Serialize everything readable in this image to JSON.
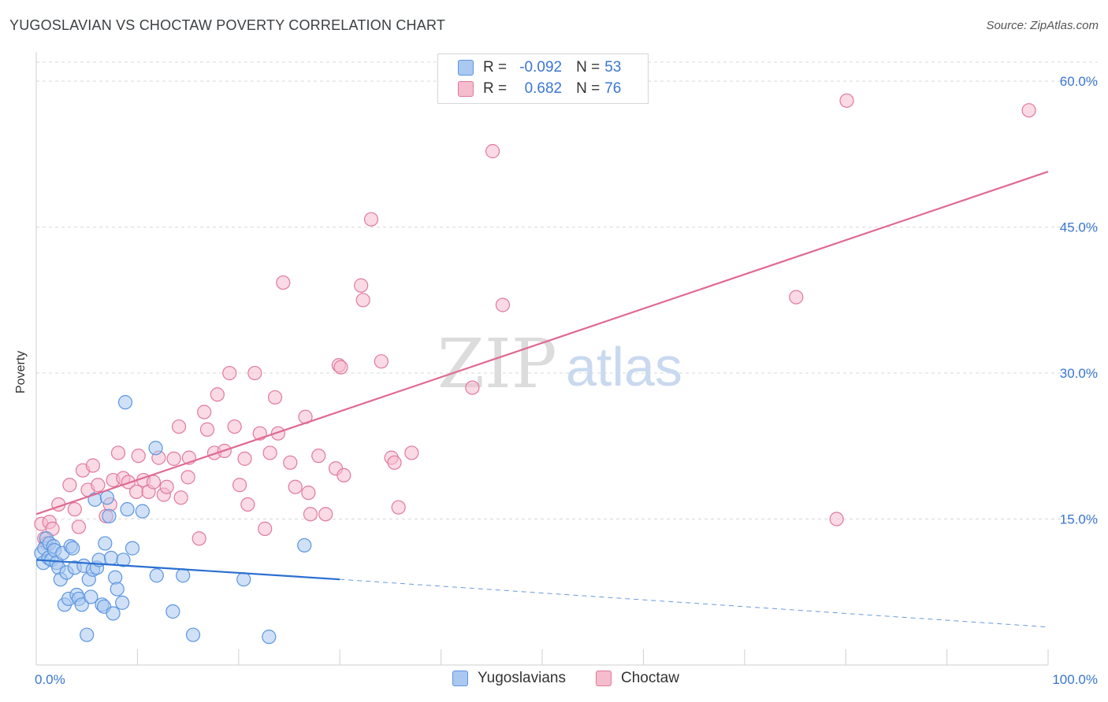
{
  "header": {
    "title": "YUGOSLAVIAN VS CHOCTAW POVERTY CORRELATION CHART",
    "source": "Source: ZipAtlas.com"
  },
  "watermark": {
    "zip": "ZIP",
    "atlas": "atlas"
  },
  "legend": {
    "rows": [
      {
        "r_label": "R = ",
        "r_value": "-0.092",
        "n_label": "N = ",
        "n_value": "53",
        "color": "#5b96e0"
      },
      {
        "r_label": "R = ",
        "r_value": "0.682",
        "n_label": "N = ",
        "n_value": "76",
        "color": "#e07a9c"
      }
    ]
  },
  "bottom_legend": {
    "items": [
      {
        "label": "Yugoslavians"
      },
      {
        "label": "Choctaw"
      }
    ]
  },
  "colors": {
    "blue_fill": "#aac8f0",
    "blue_stroke": "#5b96e0",
    "blue_line": "#2a6fd0",
    "pink_fill": "#f5bccd",
    "pink_stroke": "#e07a9c",
    "pink_line": "#e06a92",
    "axis_text": "#3a76d0",
    "grid": "#d9d9d9"
  },
  "chart_data": {
    "type": "scatter",
    "title": "YUGOSLAVIAN VS CHOCTAW POVERTY CORRELATION CHART",
    "xlabel": "",
    "ylabel": "Poverty",
    "xlim": [
      0,
      100
    ],
    "ylim": [
      0,
      63
    ],
    "x_tick_labels": [
      "0.0%",
      "100.0%"
    ],
    "y_ticks": [
      15,
      30,
      45,
      60
    ],
    "y_tick_labels": [
      "15.0%",
      "30.0%",
      "45.0%",
      "60.0%"
    ],
    "series": [
      {
        "name": "Yugoslavians",
        "r": -0.092,
        "n": 53,
        "trend": {
          "x0": 0,
          "y0": 10.8,
          "x1": 30,
          "y1": 8.8,
          "dash_to_x": 100,
          "dash_to_y": 3.9
        },
        "points": [
          [
            0.5,
            11.5
          ],
          [
            0.7,
            10.5
          ],
          [
            0.8,
            12.0
          ],
          [
            1.0,
            13.0
          ],
          [
            1.2,
            11.0
          ],
          [
            1.3,
            12.5
          ],
          [
            1.5,
            10.8
          ],
          [
            1.7,
            12.2
          ],
          [
            1.8,
            11.8
          ],
          [
            2.0,
            10.5
          ],
          [
            2.2,
            10.0
          ],
          [
            2.4,
            8.8
          ],
          [
            2.6,
            11.5
          ],
          [
            2.8,
            6.2
          ],
          [
            3.0,
            9.5
          ],
          [
            3.2,
            6.8
          ],
          [
            3.4,
            12.2
          ],
          [
            3.6,
            12.0
          ],
          [
            3.8,
            10.0
          ],
          [
            4.0,
            7.2
          ],
          [
            4.2,
            6.8
          ],
          [
            4.5,
            6.2
          ],
          [
            4.7,
            10.2
          ],
          [
            5.0,
            3.1
          ],
          [
            5.2,
            8.8
          ],
          [
            5.4,
            7.0
          ],
          [
            5.6,
            9.8
          ],
          [
            5.8,
            17.0
          ],
          [
            6.0,
            10.0
          ],
          [
            6.2,
            10.8
          ],
          [
            6.5,
            6.2
          ],
          [
            6.7,
            6.0
          ],
          [
            6.8,
            12.5
          ],
          [
            7.0,
            17.2
          ],
          [
            7.2,
            15.3
          ],
          [
            7.4,
            11.0
          ],
          [
            7.6,
            5.3
          ],
          [
            7.8,
            9.0
          ],
          [
            8.0,
            7.8
          ],
          [
            8.5,
            6.4
          ],
          [
            8.6,
            10.8
          ],
          [
            8.8,
            27.0
          ],
          [
            9.0,
            16.0
          ],
          [
            9.5,
            12.0
          ],
          [
            10.5,
            15.8
          ],
          [
            11.8,
            22.3
          ],
          [
            11.9,
            9.2
          ],
          [
            13.5,
            5.5
          ],
          [
            14.5,
            9.2
          ],
          [
            15.5,
            3.1
          ],
          [
            20.5,
            8.8
          ],
          [
            23.0,
            2.9
          ],
          [
            26.5,
            12.3
          ]
        ]
      },
      {
        "name": "Choctaw",
        "r": 0.682,
        "n": 76,
        "trend": {
          "x0": 0,
          "y0": 15.5,
          "x1": 100,
          "y1": 50.7
        },
        "points": [
          [
            0.5,
            14.5
          ],
          [
            0.8,
            13.0
          ],
          [
            1.0,
            12.5
          ],
          [
            1.3,
            14.7
          ],
          [
            1.6,
            14.0
          ],
          [
            2.2,
            16.5
          ],
          [
            3.3,
            18.5
          ],
          [
            3.8,
            16.0
          ],
          [
            4.2,
            14.2
          ],
          [
            4.6,
            20.0
          ],
          [
            5.1,
            18.0
          ],
          [
            5.6,
            20.5
          ],
          [
            6.1,
            18.5
          ],
          [
            6.9,
            15.3
          ],
          [
            7.3,
            16.5
          ],
          [
            7.6,
            19.0
          ],
          [
            8.1,
            21.8
          ],
          [
            8.6,
            19.2
          ],
          [
            9.1,
            18.8
          ],
          [
            9.9,
            17.8
          ],
          [
            10.1,
            21.5
          ],
          [
            10.6,
            19.0
          ],
          [
            11.1,
            17.8
          ],
          [
            11.6,
            18.8
          ],
          [
            12.1,
            21.3
          ],
          [
            12.6,
            17.5
          ],
          [
            12.9,
            18.3
          ],
          [
            13.6,
            21.2
          ],
          [
            14.1,
            24.5
          ],
          [
            14.3,
            17.2
          ],
          [
            15.0,
            19.3
          ],
          [
            15.1,
            21.3
          ],
          [
            16.1,
            13.0
          ],
          [
            16.6,
            26.0
          ],
          [
            16.9,
            24.2
          ],
          [
            17.6,
            21.8
          ],
          [
            17.9,
            27.8
          ],
          [
            18.6,
            22.0
          ],
          [
            19.1,
            30.0
          ],
          [
            19.6,
            24.5
          ],
          [
            20.1,
            18.5
          ],
          [
            20.6,
            21.2
          ],
          [
            20.9,
            16.5
          ],
          [
            21.6,
            30.0
          ],
          [
            22.1,
            23.8
          ],
          [
            22.6,
            14.0
          ],
          [
            23.1,
            21.8
          ],
          [
            23.6,
            27.5
          ],
          [
            23.9,
            23.8
          ],
          [
            24.4,
            39.3
          ],
          [
            25.1,
            20.8
          ],
          [
            25.6,
            18.3
          ],
          [
            26.6,
            25.5
          ],
          [
            26.9,
            17.7
          ],
          [
            27.1,
            15.5
          ],
          [
            27.9,
            21.5
          ],
          [
            28.6,
            15.5
          ],
          [
            29.6,
            20.2
          ],
          [
            29.9,
            30.8
          ],
          [
            30.1,
            30.6
          ],
          [
            30.4,
            19.5
          ],
          [
            32.1,
            39.0
          ],
          [
            32.3,
            37.5
          ],
          [
            33.1,
            45.8
          ],
          [
            34.1,
            31.2
          ],
          [
            35.1,
            21.3
          ],
          [
            35.4,
            20.8
          ],
          [
            35.8,
            16.2
          ],
          [
            37.1,
            21.8
          ],
          [
            43.1,
            28.5
          ],
          [
            45.1,
            52.8
          ],
          [
            46.1,
            37.0
          ],
          [
            75.1,
            37.8
          ],
          [
            79.1,
            15.0
          ],
          [
            80.1,
            58.0
          ],
          [
            98.1,
            57.0
          ]
        ]
      }
    ]
  }
}
